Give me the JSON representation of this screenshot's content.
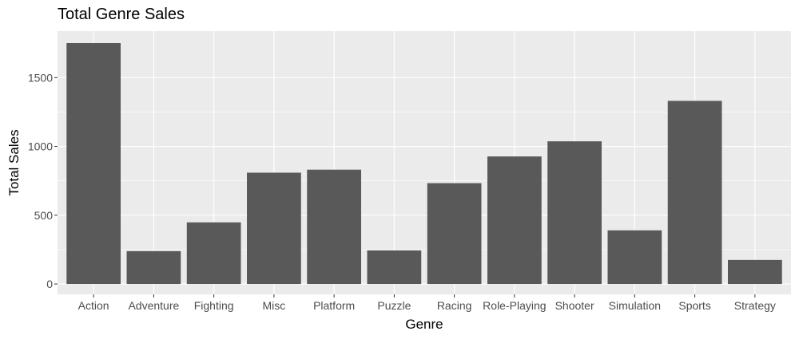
{
  "chart_data": {
    "type": "bar",
    "title": "Total Genre Sales",
    "xlabel": "Genre",
    "ylabel": "Total Sales",
    "categories": [
      "Action",
      "Adventure",
      "Fighting",
      "Misc",
      "Platform",
      "Puzzle",
      "Racing",
      "Role-Playing",
      "Shooter",
      "Simulation",
      "Sports",
      "Strategy"
    ],
    "values": [
      1751,
      239,
      448,
      809,
      831,
      244,
      733,
      927,
      1037,
      390,
      1331,
      175
    ],
    "ylim": [
      -75,
      1838
    ],
    "yticks": [
      0,
      500,
      1000,
      1500
    ],
    "ytick_labels": [
      "0",
      "500",
      "1000",
      "1500"
    ],
    "grid": true,
    "legend": "none",
    "colors": {
      "bar": "#595959",
      "panel": "#ebebeb",
      "grid_major": "#ffffff",
      "tick_text": "#4d4d4d"
    }
  }
}
